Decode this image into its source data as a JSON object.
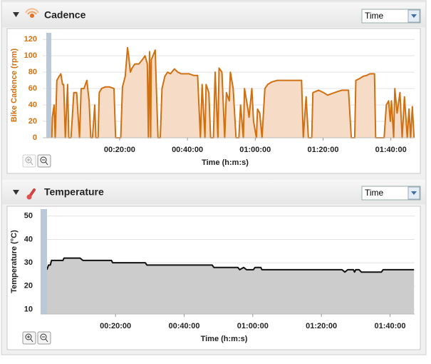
{
  "chart_data": [
    {
      "type": "area",
      "panel_title": "Cadence",
      "selector": "Time",
      "y_label": "Bike Cadence (rpm)",
      "x_label": "Time (h:m:s)",
      "color": "#d07010",
      "fill_color": "#f6dcc6",
      "axis_color": "#d07010",
      "grid": true,
      "xlim": [
        -160,
        6420
      ],
      "ylim": [
        0,
        128
      ],
      "xticks": [
        {
          "value": 1200,
          "label": "00:20:00"
        },
        {
          "value": 2400,
          "label": "00:40:00"
        },
        {
          "value": 3600,
          "label": "01:00:00"
        },
        {
          "value": 4800,
          "label": "01:20:00"
        },
        {
          "value": 6000,
          "label": "01:40:00"
        }
      ],
      "yticks": [
        0,
        20,
        40,
        60,
        80,
        100,
        120
      ],
      "x": [
        0,
        10,
        40,
        60,
        90,
        130,
        160,
        190,
        210,
        240,
        280,
        300,
        340,
        390,
        440,
        490,
        520,
        570,
        620,
        660,
        690,
        720,
        760,
        780,
        820,
        840,
        880,
        945,
        1020,
        1100,
        1130,
        1220,
        1250,
        1300,
        1340,
        1360,
        1390,
        1420,
        1470,
        1540,
        1600,
        1650,
        1690,
        1710,
        1730,
        1750,
        1760,
        1790,
        1830,
        1850,
        1880,
        1920,
        1950,
        2000,
        2050,
        2100,
        2170,
        2230,
        2290,
        2360,
        2430,
        2510,
        2580,
        2630,
        2660,
        2710,
        2730,
        2780,
        2810,
        2860,
        2890,
        2940,
        2960,
        3010,
        3060,
        3090,
        3140,
        3160,
        3210,
        3260,
        3310,
        3340,
        3390,
        3410,
        3470,
        3490,
        3540,
        3570,
        3620,
        3640,
        3680,
        3720,
        3770,
        3820,
        3890,
        3990,
        4120,
        4250,
        4370,
        4420,
        4450,
        4500,
        4540,
        4600,
        4620,
        4720,
        4810,
        4880,
        5000,
        5130,
        5250,
        5300,
        5360,
        5380,
        5440,
        5510,
        5570,
        5630,
        5710,
        5730,
        5880,
        5920,
        5960,
        5990,
        6010,
        6050,
        6070,
        6110,
        6160,
        6200,
        6240,
        6290,
        6320,
        6350,
        6380,
        6410
      ],
      "values": [
        0,
        25,
        40,
        0,
        70,
        75,
        78,
        65,
        65,
        0,
        65,
        0,
        0,
        55,
        55,
        0,
        60,
        60,
        70,
        45,
        0,
        0,
        40,
        0,
        0,
        55,
        60,
        62,
        62,
        60,
        0,
        0,
        62,
        75,
        110,
        100,
        80,
        85,
        90,
        90,
        95,
        100,
        90,
        0,
        105,
        0,
        95,
        100,
        107,
        60,
        0,
        0,
        60,
        75,
        80,
        78,
        84,
        80,
        78,
        78,
        78,
        76,
        76,
        0,
        65,
        0,
        65,
        55,
        0,
        0,
        80,
        0,
        85,
        80,
        0,
        55,
        45,
        80,
        60,
        0,
        0,
        40,
        0,
        60,
        35,
        25,
        60,
        20,
        0,
        35,
        30,
        0,
        60,
        65,
        68,
        70,
        70,
        70,
        70,
        70,
        0,
        50,
        0,
        0,
        55,
        58,
        55,
        52,
        55,
        58,
        58,
        0,
        0,
        70,
        72,
        75,
        76,
        78,
        78,
        0,
        0,
        40,
        45,
        20,
        45,
        0,
        60,
        30,
        55,
        0,
        50,
        0,
        35,
        0,
        38,
        0
      ]
    },
    {
      "type": "area",
      "panel_title": "Temperature",
      "selector": "Time",
      "y_label": "Temperature (°C)",
      "x_label": "Time (h:m:s)",
      "color": "#111111",
      "fill_color": "#cccccc",
      "axis_color": "#222222",
      "grid": true,
      "xlim": [
        -110,
        6430
      ],
      "ylim": [
        8,
        53
      ],
      "xticks": [
        {
          "value": 1200,
          "label": "00:20:00"
        },
        {
          "value": 2400,
          "label": "00:40:00"
        },
        {
          "value": 3600,
          "label": "01:00:00"
        },
        {
          "value": 4800,
          "label": "01:20:00"
        },
        {
          "value": 6000,
          "label": "01:40:00"
        }
      ],
      "yticks": [
        10,
        20,
        30,
        40,
        50
      ],
      "x": [
        0,
        30,
        60,
        80,
        280,
        300,
        580,
        630,
        1130,
        1150,
        1720,
        1750,
        2890,
        2920,
        3340,
        3370,
        3440,
        3490,
        3610,
        3640,
        3740,
        3760,
        5160,
        5210,
        5260,
        5360,
        5380,
        5400,
        5460,
        5500,
        5850,
        5880,
        6420
      ],
      "values": [
        27,
        29,
        29,
        31,
        31,
        32,
        32,
        31,
        31,
        30,
        30,
        29,
        29,
        28,
        28,
        27,
        28,
        27,
        27,
        28,
        28,
        27,
        27,
        26,
        27,
        27,
        26,
        27,
        27,
        26,
        26,
        27,
        27
      ]
    }
  ]
}
